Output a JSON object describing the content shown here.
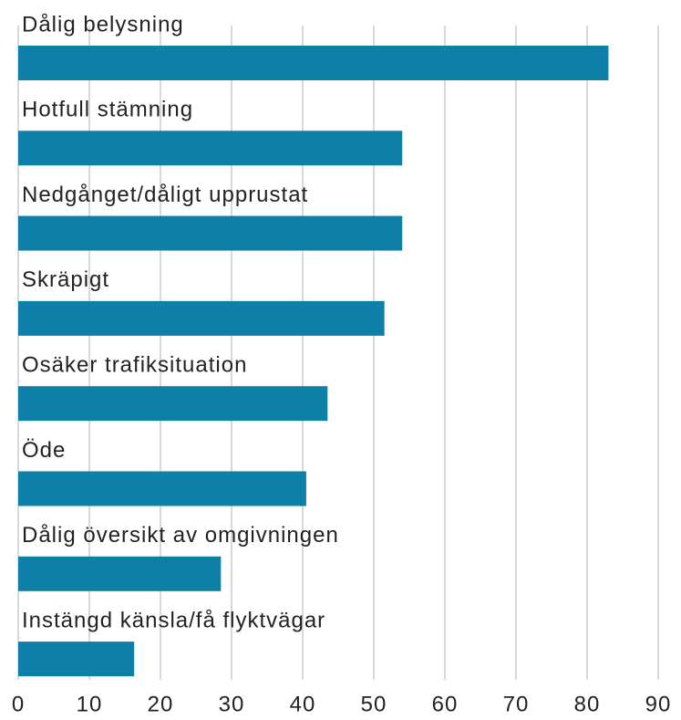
{
  "chart_data": {
    "type": "bar",
    "orientation": "horizontal",
    "categories": [
      "Dålig belysning",
      "Hotfull stämning",
      "Nedgånget/dåligt upprustat",
      "Skräpigt",
      "Osäker trafiksituation",
      "Öde",
      "Dålig översikt av omgivningen",
      "Instängd känsla/få flyktvägar"
    ],
    "values": [
      83,
      54,
      54,
      51.5,
      43.5,
      40.5,
      28.5,
      16.3
    ],
    "color": "#0e7fa6",
    "xlim": [
      0,
      90
    ],
    "xticks": [
      0,
      10,
      20,
      30,
      40,
      50,
      60,
      70,
      80,
      90
    ],
    "grid": true
  }
}
